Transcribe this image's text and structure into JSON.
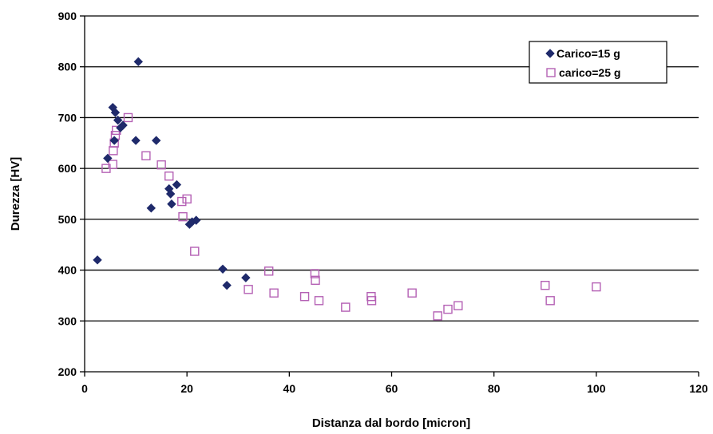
{
  "chart_data": {
    "type": "scatter",
    "title": "",
    "xlabel": "Distanza dal bordo [micron]",
    "ylabel": "Durezza [HV]",
    "xlim": [
      0,
      120
    ],
    "ylim": [
      200,
      900
    ],
    "xticks": [
      0,
      20,
      40,
      60,
      80,
      100,
      120
    ],
    "yticks": [
      200,
      300,
      400,
      500,
      600,
      700,
      800,
      900
    ],
    "xtick_labels": [
      "0",
      "20",
      "40",
      "60",
      "80",
      "100",
      "120"
    ],
    "ytick_labels": [
      "200",
      "300",
      "400",
      "500",
      "600",
      "700",
      "800",
      "900"
    ],
    "grid": "horizontal",
    "legend_position": "top-right",
    "series": [
      {
        "name": "Carico=15 g",
        "marker": "diamond",
        "color": "#1f2a6b",
        "points": [
          [
            2.5,
            420
          ],
          [
            4.5,
            620
          ],
          [
            5.5,
            720
          ],
          [
            5.8,
            655
          ],
          [
            6.0,
            710
          ],
          [
            6.5,
            695
          ],
          [
            7.0,
            680
          ],
          [
            7.5,
            685
          ],
          [
            10.0,
            655
          ],
          [
            10.5,
            810
          ],
          [
            13.0,
            522
          ],
          [
            14.0,
            655
          ],
          [
            16.5,
            560
          ],
          [
            16.8,
            550
          ],
          [
            17.0,
            530
          ],
          [
            18.0,
            568
          ],
          [
            20.5,
            490
          ],
          [
            21.0,
            495
          ],
          [
            21.8,
            498
          ],
          [
            27.0,
            402
          ],
          [
            27.8,
            370
          ],
          [
            31.5,
            385
          ]
        ]
      },
      {
        "name": "carico=25 g",
        "marker": "square-open",
        "color": "#b460b4",
        "points": [
          [
            4.2,
            600
          ],
          [
            5.5,
            608
          ],
          [
            5.6,
            635
          ],
          [
            5.8,
            650
          ],
          [
            6.0,
            665
          ],
          [
            6.2,
            675
          ],
          [
            8.5,
            700
          ],
          [
            12.0,
            625
          ],
          [
            15.0,
            607
          ],
          [
            16.5,
            585
          ],
          [
            19.0,
            535
          ],
          [
            19.2,
            505
          ],
          [
            20.0,
            540
          ],
          [
            21.5,
            437
          ],
          [
            32.0,
            362
          ],
          [
            36.0,
            398
          ],
          [
            37.0,
            355
          ],
          [
            43.0,
            348
          ],
          [
            45.0,
            393
          ],
          [
            45.1,
            380
          ],
          [
            45.8,
            340
          ],
          [
            51.0,
            327
          ],
          [
            56.0,
            348
          ],
          [
            56.1,
            340
          ],
          [
            64.0,
            355
          ],
          [
            69.0,
            310
          ],
          [
            71.0,
            323
          ],
          [
            73.0,
            330
          ],
          [
            90.0,
            370
          ],
          [
            91.0,
            340
          ],
          [
            100.0,
            367
          ]
        ]
      }
    ]
  }
}
